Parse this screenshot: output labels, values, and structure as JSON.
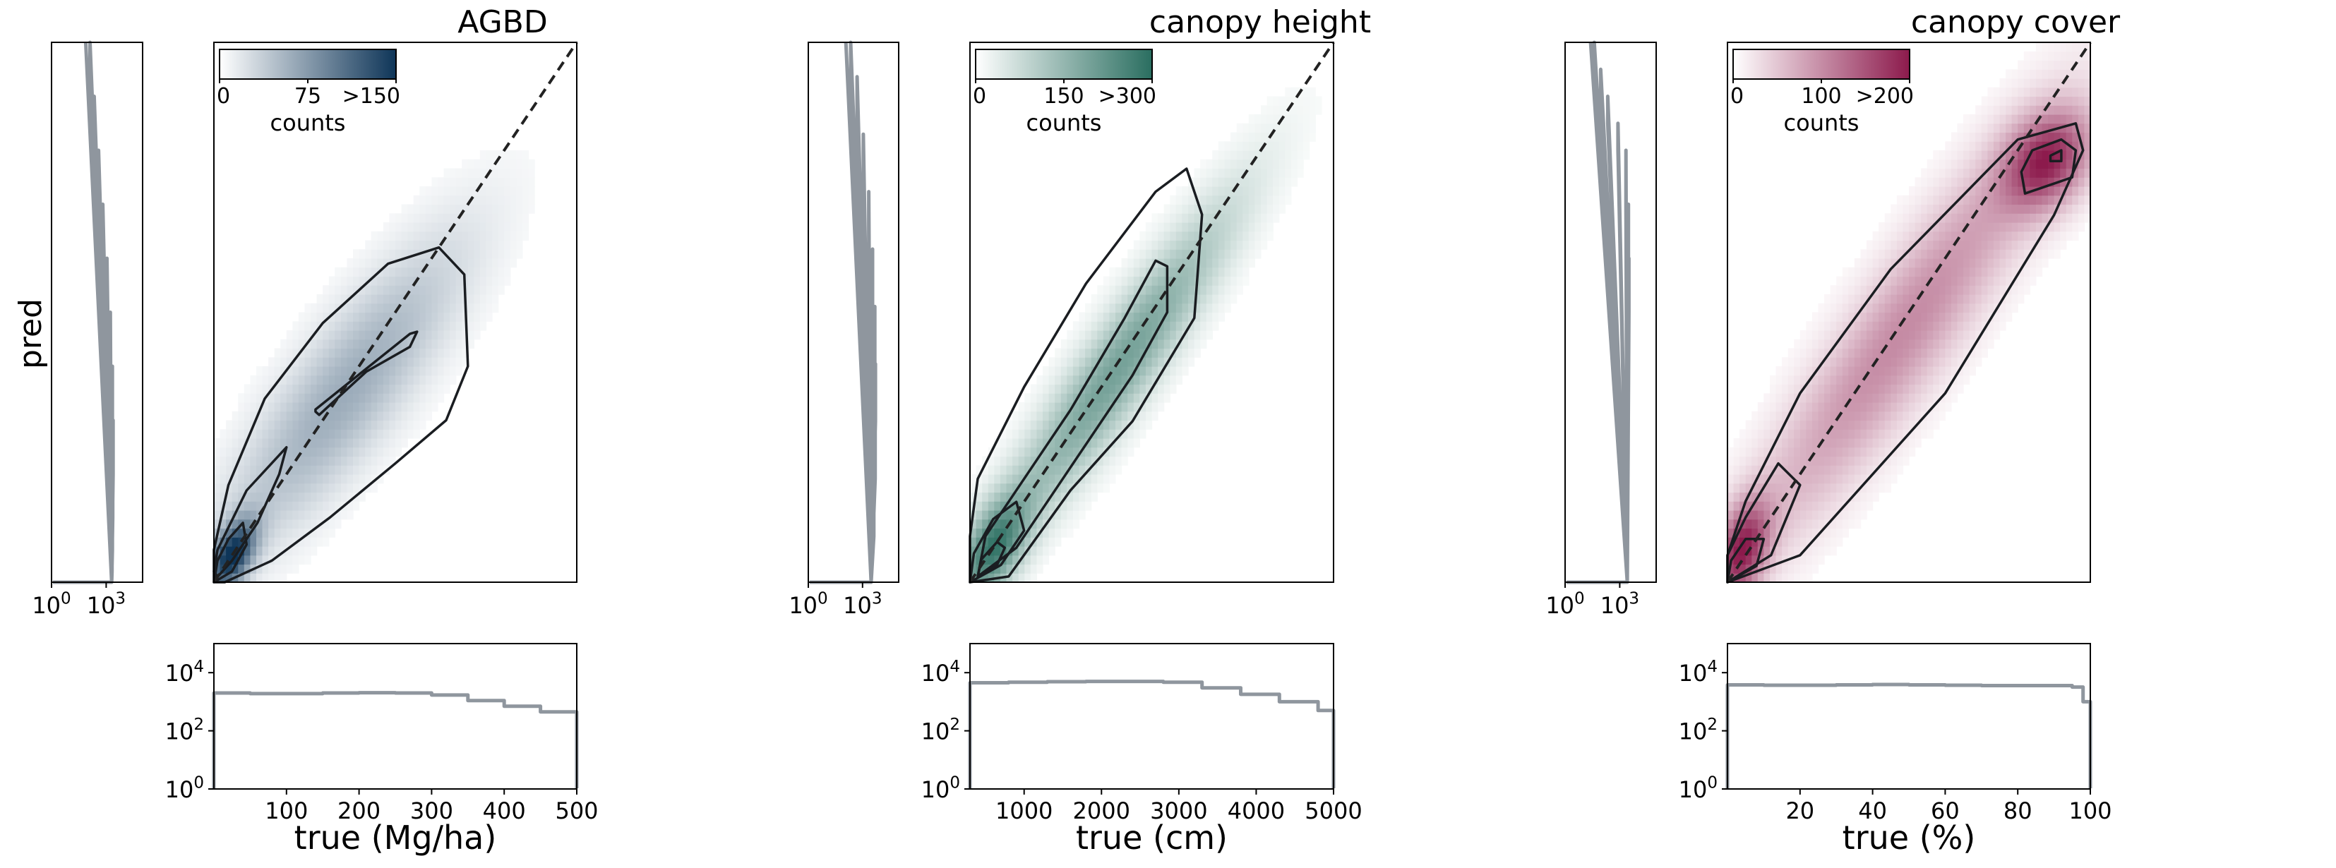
{
  "figure": {
    "ylabel": "pred"
  },
  "colors": {
    "marginal_hist": "#8f969e",
    "contour": "#1a1d21",
    "identity_line": "#222222"
  },
  "chart_data": [
    {
      "type": "heatmap",
      "title": "AGBD",
      "xlabel": "true (Mg/ha)",
      "ylabel": "pred",
      "xlim": [
        0,
        500
      ],
      "ylim": [
        0,
        500
      ],
      "x_ticks": [
        100,
        200,
        300,
        400,
        500
      ],
      "x_tick_labels": [
        "100",
        "200",
        "300",
        "400",
        "500"
      ],
      "color": "#0e3558",
      "colorbar": {
        "label": "counts",
        "ticks": [
          "0",
          "75",
          ">150"
        ],
        "max": 150
      },
      "density": [
        {
          "cx": 25,
          "cy": 25,
          "sx": 22,
          "sy": 22,
          "rho": 0.5,
          "w": 1.0
        },
        {
          "cx": 180,
          "cy": 175,
          "sx": 110,
          "sy": 95,
          "rho": 0.85,
          "w": 0.35
        }
      ],
      "contours": [
        [
          [
            0,
            0
          ],
          [
            15,
            0
          ],
          [
            80,
            20
          ],
          [
            160,
            60
          ],
          [
            250,
            110
          ],
          [
            320,
            150
          ],
          [
            350,
            200
          ],
          [
            345,
            285
          ],
          [
            310,
            310
          ],
          [
            240,
            295
          ],
          [
            150,
            240
          ],
          [
            70,
            170
          ],
          [
            20,
            90
          ],
          [
            0,
            30
          ]
        ],
        [
          [
            0,
            10
          ],
          [
            5,
            30
          ],
          [
            45,
            85
          ],
          [
            100,
            125
          ],
          [
            90,
            100
          ],
          [
            60,
            55
          ],
          [
            25,
            20
          ],
          [
            5,
            5
          ]
        ],
        [
          [
            0,
            0
          ],
          [
            25,
            10
          ],
          [
            45,
            35
          ],
          [
            40,
            55
          ],
          [
            20,
            40
          ],
          [
            5,
            20
          ]
        ],
        [
          [
            140,
            160
          ],
          [
            205,
            195
          ],
          [
            270,
            230
          ],
          [
            280,
            232
          ],
          [
            270,
            218
          ],
          [
            210,
            195
          ],
          [
            145,
            155
          ],
          [
            140,
            158
          ]
        ]
      ],
      "marginal_y": {
        "scale": "log",
        "ticks": [
          "10^0",
          "10^3"
        ],
        "y": [
          0,
          10,
          30,
          60,
          100,
          150,
          200,
          250,
          300,
          350,
          400,
          450,
          500
        ],
        "counts": [
          2000,
          2100,
          2200,
          2300,
          2400,
          2200,
          1700,
          1100,
          650,
          380,
          220,
          130,
          75
        ]
      },
      "marginal_x": {
        "scale": "log",
        "ticks": [
          "10^0",
          "10^2",
          "10^4"
        ],
        "x": [
          0,
          50,
          100,
          150,
          200,
          250,
          300,
          350,
          400,
          450,
          500
        ],
        "counts": [
          2000,
          1900,
          1900,
          2000,
          2050,
          2000,
          1700,
          1100,
          700,
          450,
          280
        ]
      }
    },
    {
      "type": "heatmap",
      "title": "canopy height",
      "xlabel": "true (cm)",
      "ylabel": "pred",
      "xlim": [
        300,
        5000
      ],
      "ylim": [
        300,
        5000
      ],
      "x_ticks": [
        1000,
        2000,
        3000,
        4000,
        5000
      ],
      "x_tick_labels": [
        "1000",
        "2000",
        "3000",
        "4000",
        "5000"
      ],
      "color": "#2a6e60",
      "colorbar": {
        "label": "counts",
        "ticks": [
          "0",
          "150",
          ">300"
        ],
        "max": 300
      },
      "density": [
        {
          "cx": 600,
          "cy": 600,
          "sx": 300,
          "sy": 300,
          "rho": 0.55,
          "w": 0.8
        },
        {
          "cx": 2200,
          "cy": 2150,
          "sx": 1000,
          "sy": 950,
          "rho": 0.93,
          "w": 0.6
        }
      ],
      "contours": [
        [
          [
            300,
            300
          ],
          [
            800,
            350
          ],
          [
            1600,
            1100
          ],
          [
            2400,
            1700
          ],
          [
            3200,
            2600
          ],
          [
            3300,
            3500
          ],
          [
            3100,
            3900
          ],
          [
            2700,
            3700
          ],
          [
            1800,
            2900
          ],
          [
            1000,
            2000
          ],
          [
            400,
            1200
          ],
          [
            300,
            700
          ]
        ],
        [
          [
            400,
            350
          ],
          [
            900,
            600
          ],
          [
            1600,
            1300
          ],
          [
            2400,
            2100
          ],
          [
            2850,
            2650
          ],
          [
            2850,
            3050
          ],
          [
            2700,
            3100
          ],
          [
            2300,
            2600
          ],
          [
            1600,
            1800
          ],
          [
            900,
            1100
          ],
          [
            500,
            700
          ]
        ],
        [
          [
            300,
            300
          ],
          [
            700,
            450
          ],
          [
            1000,
            750
          ],
          [
            900,
            1000
          ],
          [
            600,
            850
          ],
          [
            350,
            550
          ]
        ],
        [
          [
            400,
            350
          ],
          [
            650,
            450
          ],
          [
            750,
            600
          ],
          [
            650,
            650
          ],
          [
            450,
            500
          ]
        ]
      ],
      "marginal_y": {
        "scale": "log",
        "ticks": [
          "10^0",
          "10^3"
        ],
        "y": [
          300,
          700,
          1200,
          1700,
          2200,
          2700,
          3200,
          3700,
          4200,
          4700,
          5000
        ],
        "counts": [
          3000,
          4200,
          5000,
          5200,
          4800,
          3600,
          2200,
          1100,
          500,
          220,
          120
        ]
      },
      "marginal_x": {
        "scale": "log",
        "ticks": [
          "10^0",
          "10^2",
          "10^4"
        ],
        "x": [
          300,
          800,
          1300,
          1800,
          2300,
          2800,
          3300,
          3800,
          4300,
          4800,
          5000
        ],
        "counts": [
          4500,
          4700,
          4900,
          5000,
          5000,
          4700,
          3000,
          1800,
          1000,
          500,
          200
        ]
      }
    },
    {
      "type": "heatmap",
      "title": "canopy cover",
      "xlabel": "true (%)",
      "ylabel": "pred",
      "xlim": [
        0,
        100
      ],
      "ylim": [
        0,
        100
      ],
      "x_ticks": [
        20,
        40,
        60,
        80,
        100
      ],
      "x_tick_labels": [
        "20",
        "40",
        "60",
        "80",
        "100"
      ],
      "color": "#8c1a4c",
      "colorbar": {
        "label": "counts",
        "ticks": [
          "0",
          "100",
          ">200"
        ],
        "max": 200
      },
      "density": [
        {
          "cx": 4,
          "cy": 6,
          "sx": 5,
          "sy": 6,
          "rho": 0.4,
          "w": 0.9
        },
        {
          "cx": 88,
          "cy": 78,
          "sx": 8,
          "sy": 6,
          "rho": 0.3,
          "w": 0.85
        },
        {
          "cx": 48,
          "cy": 46,
          "sx": 28,
          "sy": 26,
          "rho": 0.92,
          "w": 0.45
        }
      ],
      "contours": [
        [
          [
            0,
            0
          ],
          [
            20,
            5
          ],
          [
            60,
            35
          ],
          [
            90,
            68
          ],
          [
            98,
            80
          ],
          [
            96,
            85
          ],
          [
            80,
            82
          ],
          [
            45,
            58
          ],
          [
            20,
            35
          ],
          [
            5,
            15
          ],
          [
            0,
            5
          ]
        ],
        [
          [
            82,
            72
          ],
          [
            95,
            75
          ],
          [
            96,
            80
          ],
          [
            92,
            82
          ],
          [
            84,
            80
          ],
          [
            81,
            76
          ]
        ],
        [
          [
            89,
            78
          ],
          [
            92,
            78
          ],
          [
            92,
            80
          ],
          [
            89,
            79
          ]
        ],
        [
          [
            0,
            0
          ],
          [
            12,
            5
          ],
          [
            20,
            18
          ],
          [
            14,
            22
          ],
          [
            5,
            12
          ],
          [
            0,
            5
          ]
        ],
        [
          [
            0,
            0
          ],
          [
            8,
            3
          ],
          [
            10,
            8
          ],
          [
            5,
            8
          ],
          [
            1,
            4
          ]
        ]
      ],
      "marginal_y": {
        "scale": "log",
        "ticks": [
          "10^0",
          "10^3"
        ],
        "y": [
          0,
          5,
          10,
          20,
          30,
          40,
          50,
          60,
          70,
          80,
          85,
          90,
          95,
          100
        ],
        "counts": [
          2600,
          2200,
          2100,
          2300,
          2600,
          3000,
          3200,
          3000,
          2200,
          800,
          220,
          90,
          40,
          25
        ]
      },
      "marginal_x": {
        "scale": "log",
        "ticks": [
          "10^0",
          "10^2",
          "10^4"
        ],
        "x": [
          0,
          10,
          20,
          30,
          40,
          50,
          60,
          70,
          80,
          90,
          95,
          98,
          100
        ],
        "counts": [
          3800,
          3700,
          3700,
          3800,
          3900,
          3800,
          3700,
          3600,
          3600,
          3600,
          3200,
          1000,
          35
        ]
      }
    }
  ]
}
